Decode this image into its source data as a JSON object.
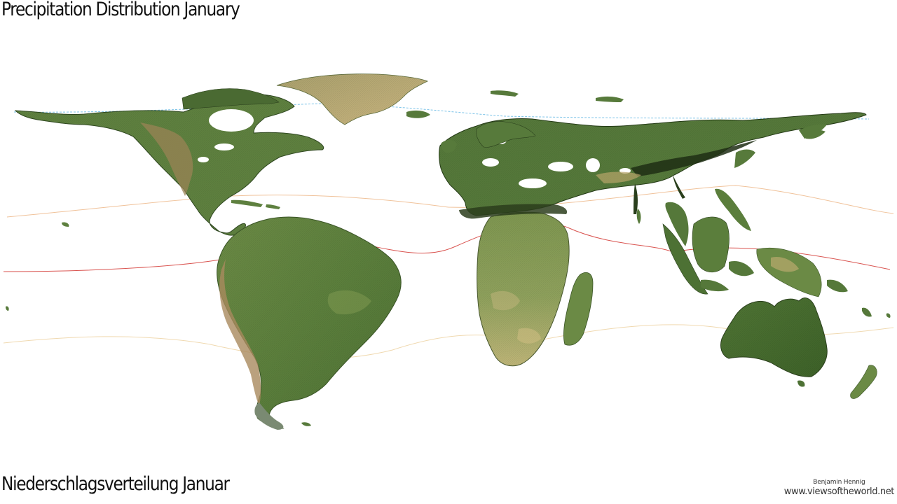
{
  "title": "Precipitation Distribution January",
  "subtitle": "Niederschlagsverteilung Januar",
  "credit": {
    "author": "Benjamin Hennig",
    "site": "www.viewsoftheworld.net"
  },
  "colors": {
    "land_green": "#5d7f3f",
    "land_dark": "#3c5a28",
    "land_light": "#a6ac6a",
    "desert": "#c9b47a",
    "mountain_brown": "#9a7a55",
    "equator": "#d9534f",
    "tropic": "#f0c29a",
    "arctic": "#7cc3e8",
    "background": "#ffffff"
  },
  "map": {
    "type": "gridded cartogram",
    "graticule": [
      "arctic-circle",
      "tropic-of-cancer",
      "equator",
      "tropic-of-capricorn"
    ]
  }
}
